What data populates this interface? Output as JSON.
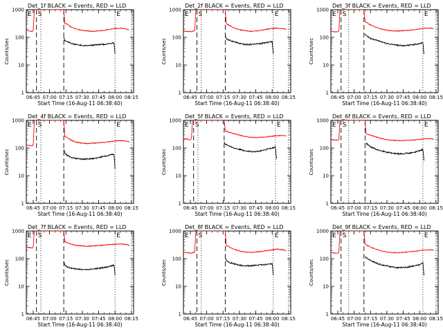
{
  "shared": {
    "ylabel": "Counts/sec",
    "xlabel": "Start Time (16-Aug-11 06:38:40)",
    "x_ticks": [
      "06:45",
      "07:00",
      "07:15",
      "07:30",
      "07:45",
      "08:00",
      "08:15"
    ],
    "y_ticks": [
      "1",
      "10",
      "100",
      "1000"
    ],
    "marker_labels": [
      "E",
      "S",
      "E"
    ],
    "colors": {
      "events": "#000000",
      "lld": "#ff0000",
      "axes": "#000000"
    }
  },
  "chart_data": [
    {
      "type": "line",
      "title": "Det_1f BLACK = Events, RED = LLD",
      "xlabel": "Start Time (16-Aug-11 06:38:40)",
      "ylabel": "Counts/sec",
      "xlim": [
        "06:38:40",
        "08:17:00"
      ],
      "ylim": [
        1,
        1000
      ],
      "y_scale": "log",
      "markers": {
        "dashed": [
          "06:48",
          "07:13"
        ],
        "dotted": [
          "06:52",
          "08:00",
          "08:15"
        ]
      },
      "series": [
        {
          "name": "LLD",
          "x": [
            "06:38:40",
            "06:42",
            "06:44",
            "06:45",
            "06:46",
            "06:47",
            "06:48",
            "07:13",
            "07:14",
            "07:16",
            "07:20",
            "07:25",
            "07:30",
            "07:35",
            "07:40",
            "07:45",
            "07:50",
            "07:55",
            "08:00",
            "08:05",
            "08:10",
            "08:13"
          ],
          "values": [
            180,
            170,
            160,
            180,
            1000,
            1000,
            1000,
            1000,
            320,
            300,
            230,
            200,
            180,
            170,
            165,
            170,
            180,
            195,
            210,
            215,
            205,
            185
          ]
        },
        {
          "name": "Events",
          "x": [
            "07:13",
            "07:14",
            "07:16",
            "07:20",
            "07:25",
            "07:30",
            "07:35",
            "07:40",
            "07:45",
            "07:50",
            "07:55",
            "07:59",
            "08:00"
          ],
          "values": [
            110,
            75,
            70,
            60,
            55,
            50,
            50,
            52,
            55,
            55,
            60,
            65,
            25
          ]
        }
      ]
    },
    {
      "type": "line",
      "title": "Det_2f BLACK = Events, RED = LLD",
      "xlabel": "Start Time (16-Aug-11 06:38:40)",
      "ylabel": "Counts/sec",
      "xlim": [
        "06:38:40",
        "08:17:00"
      ],
      "ylim": [
        1,
        1000
      ],
      "y_scale": "log",
      "markers": {
        "dashed": [
          "06:51",
          "07:17"
        ],
        "dotted": [
          "06:55",
          "08:01",
          "08:15"
        ]
      },
      "series": [
        {
          "name": "LLD",
          "x": [
            "06:38:40",
            "06:42",
            "06:46",
            "06:49",
            "06:50",
            "06:51",
            "07:17",
            "07:18",
            "07:20",
            "07:25",
            "07:30",
            "07:35",
            "07:40",
            "07:45",
            "07:50",
            "07:55",
            "08:00",
            "08:05",
            "08:10",
            "08:13"
          ],
          "values": [
            170,
            165,
            160,
            175,
            1000,
            1000,
            1000,
            310,
            280,
            220,
            190,
            175,
            165,
            170,
            180,
            195,
            210,
            215,
            205,
            190
          ]
        },
        {
          "name": "Events",
          "x": [
            "07:17",
            "07:18",
            "07:20",
            "07:25",
            "07:30",
            "07:35",
            "07:40",
            "07:45",
            "07:50",
            "07:55",
            "08:00",
            "08:01"
          ],
          "values": [
            120,
            90,
            80,
            70,
            60,
            55,
            55,
            58,
            60,
            65,
            70,
            25
          ]
        }
      ]
    },
    {
      "type": "line",
      "title": "Det_3f BLACK = Events, RED = LLD",
      "xlabel": "Start Time (16-Aug-11 06:38:40)",
      "ylabel": "Counts/sec",
      "xlim": [
        "06:38:40",
        "08:17:00"
      ],
      "ylim": [
        1,
        1000
      ],
      "y_scale": "log",
      "markers": {
        "dashed": [
          "06:48",
          "07:09"
        ],
        "dotted": [
          "06:55",
          "08:03",
          "08:15"
        ]
      },
      "series": [
        {
          "name": "LLD",
          "x": [
            "06:38:40",
            "06:42",
            "06:45",
            "06:46",
            "06:47",
            "07:09",
            "07:10",
            "07:12",
            "07:15",
            "07:20",
            "07:25",
            "07:30",
            "07:35",
            "07:40",
            "07:45",
            "07:50",
            "07:55",
            "08:00",
            "08:05",
            "08:10",
            "08:13"
          ],
          "values": [
            170,
            160,
            155,
            170,
            1000,
            1000,
            360,
            330,
            280,
            230,
            200,
            180,
            170,
            170,
            175,
            180,
            190,
            200,
            215,
            215,
            210
          ]
        },
        {
          "name": "Events",
          "x": [
            "07:10",
            "07:12",
            "07:15",
            "07:20",
            "07:25",
            "07:30",
            "07:35",
            "07:40",
            "07:45",
            "07:50",
            "07:55",
            "08:00",
            "08:03",
            "08:04"
          ],
          "values": [
            130,
            110,
            90,
            80,
            70,
            60,
            55,
            52,
            50,
            52,
            55,
            60,
            65,
            25
          ]
        }
      ]
    },
    {
      "type": "line",
      "title": "Det_4f BLACK = Events, RED = LLD",
      "xlabel": "Start Time (16-Aug-11 06:38:40)",
      "ylabel": "Counts/sec",
      "xlim": [
        "06:38:40",
        "08:17:00"
      ],
      "ylim": [
        1,
        1000
      ],
      "y_scale": "log",
      "markers": {
        "dashed": [
          "06:48",
          "07:13"
        ],
        "dotted": [
          "06:52",
          "08:00",
          "08:15"
        ]
      },
      "series": [
        {
          "name": "LLD",
          "x": [
            "06:38:40",
            "06:42",
            "06:44",
            "06:45",
            "06:46",
            "06:48",
            "07:13",
            "07:14",
            "07:16",
            "07:20",
            "07:25",
            "07:30",
            "07:35",
            "07:40",
            "07:45",
            "07:50",
            "07:55",
            "08:00",
            "08:05",
            "08:10",
            "08:13"
          ],
          "values": [
            130,
            125,
            120,
            130,
            1000,
            1000,
            1000,
            260,
            240,
            190,
            160,
            150,
            145,
            150,
            155,
            160,
            170,
            180,
            185,
            180,
            170
          ]
        },
        {
          "name": "Events",
          "x": [
            "07:13",
            "07:14",
            "07:16",
            "07:20",
            "07:25",
            "07:30",
            "07:35",
            "07:40",
            "07:45",
            "07:50",
            "07:55",
            "07:59",
            "08:00"
          ],
          "values": [
            90,
            65,
            55,
            45,
            42,
            40,
            40,
            42,
            45,
            50,
            55,
            60,
            18
          ]
        }
      ]
    },
    {
      "type": "line",
      "title": "Det_5f BLACK = Events, RED = LLD",
      "xlabel": "Start Time (16-Aug-11 06:38:40)",
      "ylabel": "Counts/sec",
      "xlim": [
        "06:38:40",
        "08:17:00"
      ],
      "ylim": [
        1,
        1000
      ],
      "y_scale": "log",
      "markers": {
        "dashed": [
          "06:48",
          "07:16"
        ],
        "dotted": [
          "06:52",
          "08:03",
          "08:15"
        ]
      },
      "series": [
        {
          "name": "LLD",
          "x": [
            "06:38:40",
            "06:42",
            "06:45",
            "06:46",
            "06:47",
            "07:16",
            "07:17",
            "07:20",
            "07:25",
            "07:30",
            "07:35",
            "07:40",
            "07:45",
            "07:50",
            "07:55",
            "08:00",
            "08:05",
            "08:10",
            "08:13"
          ],
          "values": [
            220,
            210,
            200,
            220,
            1000,
            1000,
            420,
            380,
            330,
            290,
            260,
            245,
            240,
            245,
            255,
            270,
            280,
            285,
            270
          ]
        },
        {
          "name": "Events",
          "x": [
            "07:16",
            "07:17",
            "07:20",
            "07:25",
            "07:30",
            "07:35",
            "07:40",
            "07:45",
            "07:50",
            "07:55",
            "08:00",
            "08:03",
            "08:04"
          ],
          "values": [
            170,
            140,
            120,
            100,
            90,
            80,
            75,
            75,
            80,
            90,
            100,
            110,
            40
          ]
        }
      ]
    },
    {
      "type": "line",
      "title": "Det_6f BLACK = Events, RED = LLD",
      "xlabel": "Start Time (16-Aug-11 06:38:40)",
      "ylabel": "Counts/sec",
      "xlim": [
        "06:38:40",
        "08:17:00"
      ],
      "ylim": [
        1,
        1000
      ],
      "y_scale": "log",
      "markers": {
        "dashed": [
          "06:48",
          "07:10"
        ],
        "dotted": [
          "06:55",
          "08:03",
          "08:15"
        ]
      },
      "series": [
        {
          "name": "LLD",
          "x": [
            "06:38:40",
            "06:42",
            "06:45",
            "06:46",
            "06:47",
            "07:10",
            "07:11",
            "07:13",
            "07:15",
            "07:20",
            "07:25",
            "07:30",
            "07:35",
            "07:40",
            "07:45",
            "07:50",
            "07:55",
            "08:00",
            "08:05",
            "08:10",
            "08:13"
          ],
          "values": [
            200,
            195,
            190,
            205,
            1000,
            1000,
            330,
            310,
            290,
            250,
            220,
            200,
            190,
            185,
            185,
            190,
            195,
            205,
            215,
            220,
            210
          ]
        },
        {
          "name": "Events",
          "x": [
            "07:11",
            "07:13",
            "07:15",
            "07:20",
            "07:25",
            "07:30",
            "07:35",
            "07:40",
            "07:45",
            "07:50",
            "07:55",
            "08:00",
            "08:03",
            "08:04"
          ],
          "values": [
            150,
            130,
            110,
            90,
            80,
            70,
            65,
            62,
            62,
            65,
            70,
            80,
            90,
            35
          ]
        }
      ]
    },
    {
      "type": "line",
      "title": "Det_7f BLACK = Events, RED = LLD",
      "xlabel": "Start Time (16-Aug-11 06:38:40)",
      "ylabel": "Counts/sec",
      "xlim": [
        "06:38:40",
        "08:17:00"
      ],
      "ylim": [
        1,
        1000
      ],
      "y_scale": "log",
      "markers": {
        "dashed": [
          "06:48",
          "07:13"
        ],
        "dotted": [
          "06:52",
          "08:00",
          "08:15"
        ]
      },
      "series": [
        {
          "name": "LLD",
          "x": [
            "06:38:40",
            "06:42",
            "06:44",
            "06:45",
            "06:46",
            "06:48",
            "07:13",
            "07:14",
            "07:16",
            "07:20",
            "07:25",
            "07:30",
            "07:35",
            "07:40",
            "07:45",
            "07:50",
            "07:55",
            "08:00",
            "08:05",
            "08:10",
            "08:13"
          ],
          "values": [
            260,
            250,
            240,
            260,
            1000,
            1000,
            1000,
            420,
            380,
            330,
            300,
            290,
            280,
            290,
            300,
            310,
            320,
            330,
            340,
            330,
            300
          ]
        },
        {
          "name": "Events",
          "x": [
            "07:13",
            "07:14",
            "07:16",
            "07:20",
            "07:25",
            "07:30",
            "07:35",
            "07:40",
            "07:45",
            "07:50",
            "07:55",
            "07:59",
            "08:00"
          ],
          "values": [
            80,
            60,
            50,
            45,
            42,
            40,
            40,
            42,
            45,
            48,
            52,
            60,
            25
          ]
        }
      ]
    },
    {
      "type": "line",
      "title": "Det_8f BLACK = Events, RED = LLD",
      "xlabel": "Start Time (16-Aug-11 06:38:40)",
      "ylabel": "Counts/sec",
      "xlim": [
        "06:38:40",
        "08:17:00"
      ],
      "ylim": [
        1,
        1000
      ],
      "y_scale": "log",
      "markers": {
        "dashed": [
          "06:51",
          "07:17"
        ],
        "dotted": [
          "06:55",
          "08:01",
          "08:15"
        ]
      },
      "series": [
        {
          "name": "LLD",
          "x": [
            "06:38:40",
            "06:42",
            "06:46",
            "06:49",
            "06:50",
            "06:51",
            "07:17",
            "07:18",
            "07:20",
            "07:25",
            "07:30",
            "07:35",
            "07:40",
            "07:45",
            "07:50",
            "07:55",
            "08:00",
            "08:05",
            "08:10",
            "08:13"
          ],
          "values": [
            170,
            165,
            160,
            175,
            1000,
            1000,
            1000,
            300,
            270,
            220,
            190,
            175,
            170,
            175,
            180,
            195,
            210,
            220,
            210,
            190
          ]
        },
        {
          "name": "Events",
          "x": [
            "07:17",
            "07:18",
            "07:20",
            "07:25",
            "07:30",
            "07:35",
            "07:40",
            "07:45",
            "07:50",
            "07:55",
            "08:00",
            "08:01"
          ],
          "values": [
            110,
            85,
            75,
            65,
            58,
            55,
            55,
            58,
            60,
            62,
            65,
            25
          ]
        }
      ]
    },
    {
      "type": "line",
      "title": "Det_9f BLACK = Events, RED = LLD",
      "xlabel": "Start Time (16-Aug-11 06:38:40)",
      "ylabel": "Counts/sec",
      "xlim": [
        "06:38:40",
        "08:17:00"
      ],
      "ylim": [
        1,
        1000
      ],
      "y_scale": "log",
      "markers": {
        "dashed": [
          "06:48",
          "07:09"
        ],
        "dotted": [
          "06:55",
          "08:03",
          "08:15"
        ]
      },
      "series": [
        {
          "name": "LLD",
          "x": [
            "06:38:40",
            "06:42",
            "06:45",
            "06:46",
            "06:47",
            "07:09",
            "07:10",
            "07:12",
            "07:15",
            "07:20",
            "07:25",
            "07:30",
            "07:35",
            "07:40",
            "07:45",
            "07:50",
            "07:55",
            "08:00",
            "08:05",
            "08:10",
            "08:13"
          ],
          "values": [
            170,
            160,
            155,
            170,
            1000,
            1000,
            330,
            300,
            260,
            220,
            190,
            175,
            165,
            165,
            170,
            175,
            185,
            195,
            205,
            210,
            200
          ]
        },
        {
          "name": "Events",
          "x": [
            "07:10",
            "07:12",
            "07:15",
            "07:20",
            "07:25",
            "07:30",
            "07:35",
            "07:40",
            "07:45",
            "07:50",
            "07:55",
            "08:00",
            "08:03",
            "08:04"
          ],
          "values": [
            120,
            100,
            85,
            70,
            60,
            55,
            50,
            48,
            48,
            50,
            55,
            60,
            70,
            25
          ]
        }
      ]
    }
  ]
}
